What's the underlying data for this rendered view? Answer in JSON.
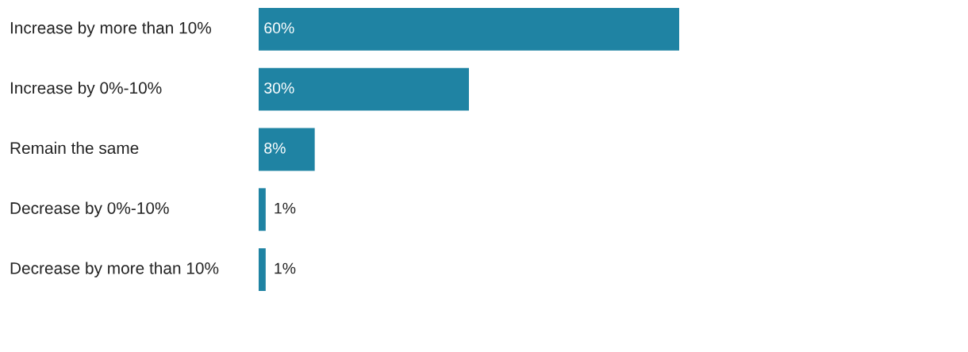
{
  "chart_data": {
    "type": "bar",
    "orientation": "horizontal",
    "categories": [
      "Increase by more than 10%",
      "Increase by 0%-10%",
      "Remain the same",
      "Decrease by 0%-10%",
      "Decrease by more than 10%"
    ],
    "values": [
      60,
      30,
      8,
      1,
      1
    ],
    "value_labels": [
      "60%",
      "30%",
      "8%",
      "1%",
      "1%"
    ],
    "color": "#1f83a3"
  }
}
